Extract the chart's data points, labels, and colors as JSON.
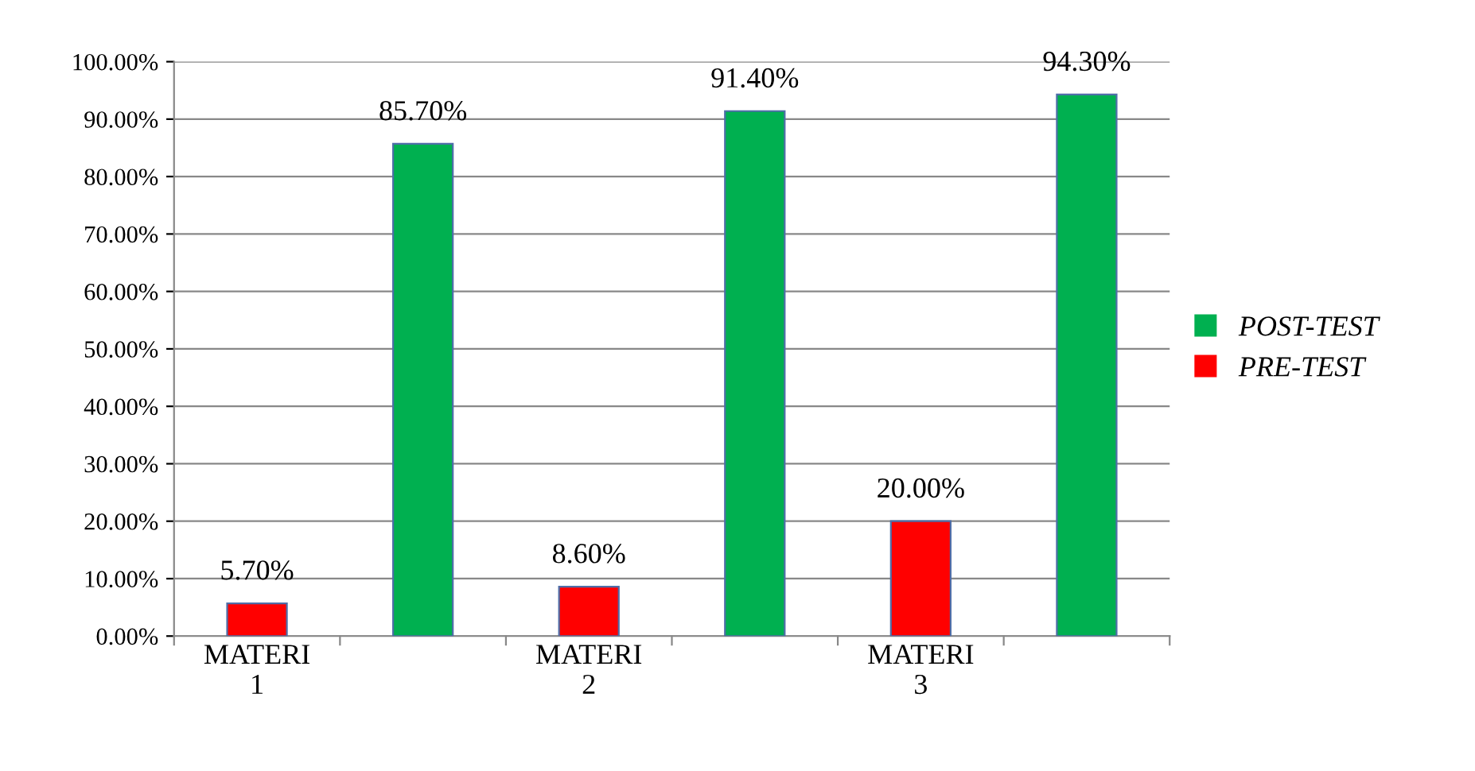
{
  "chart_data": {
    "type": "bar",
    "categories": [
      "MATERI\n1",
      null,
      "MATERI\n2",
      null,
      "MATERI\n3",
      null
    ],
    "series": [
      {
        "name": "POST-TEST",
        "color": "#00b050",
        "values": [
          null,
          85.7,
          null,
          91.4,
          null,
          94.3
        ],
        "value_labels": [
          null,
          "85.70%",
          null,
          "91.40%",
          null,
          "94.30%"
        ]
      },
      {
        "name": "PRE-TEST",
        "color": "#ff0000",
        "values": [
          5.7,
          null,
          8.6,
          null,
          20.0,
          null
        ],
        "value_labels": [
          "5.70%",
          null,
          "8.60%",
          null,
          "20.00%",
          null
        ]
      }
    ],
    "ylim": [
      0,
      100
    ],
    "yticks": [
      {
        "value": 0,
        "label": "0.00%"
      },
      {
        "value": 10,
        "label": "10.00%"
      },
      {
        "value": 20,
        "label": "20.00%"
      },
      {
        "value": 30,
        "label": "30.00%"
      },
      {
        "value": 40,
        "label": "40.00%"
      },
      {
        "value": 50,
        "label": "50.00%"
      },
      {
        "value": 60,
        "label": "60.00%"
      },
      {
        "value": 70,
        "label": "70.00%"
      },
      {
        "value": 80,
        "label": "80.00%"
      },
      {
        "value": 90,
        "label": "90.00%"
      },
      {
        "value": 100,
        "label": "100.00%"
      }
    ],
    "grid": "y",
    "legend": "right"
  }
}
